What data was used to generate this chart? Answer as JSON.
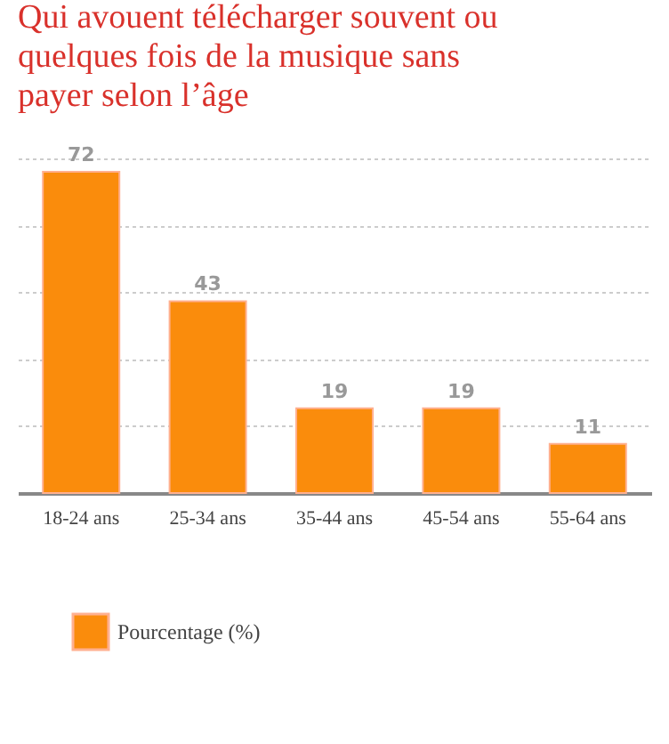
{
  "chart_data": {
    "type": "bar",
    "title": "Qui avouent télécharger souvent ou quelques fois de la musique sans payer selon l’âge",
    "categories": [
      "18-24 ans",
      "25-34 ans",
      "35-44 ans",
      "45-54 ans",
      "55-64 ans"
    ],
    "series": [
      {
        "name": "Pourcentage (%)",
        "color": "#fa8c0c",
        "values": [
          72,
          43,
          19,
          19,
          11
        ]
      }
    ],
    "ylim": [
      0,
      75
    ],
    "yticks": [
      {
        "value": 15,
        "label": null
      },
      {
        "value": 30,
        "label": null
      },
      {
        "value": 45,
        "label": null
      },
      {
        "value": 60,
        "label": null
      },
      {
        "value": 75,
        "label": null
      }
    ],
    "grid": "y",
    "tick_labels": "x",
    "data_labels": true,
    "legend": "bottom left"
  }
}
